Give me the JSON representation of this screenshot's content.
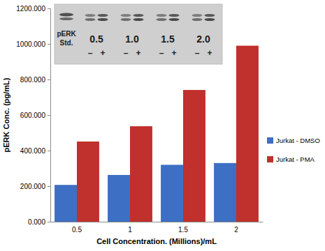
{
  "chart_data": {
    "type": "bar",
    "y_label": "pERK Conc. (pg/mL)",
    "x_label": "Cell Concentration. (Millions)/mL",
    "categories": [
      "0.5",
      "1",
      "1.5",
      "2"
    ],
    "series": [
      {
        "name": "Jurkat - DMSO",
        "color": "#3d6fc4",
        "values": [
          207,
          263,
          320,
          330
        ]
      },
      {
        "name": "Jurkat - PMA",
        "color": "#c0302c",
        "values": [
          451,
          537,
          741,
          990
        ]
      }
    ],
    "ylim": [
      0,
      1200
    ],
    "yticks": [
      {
        "value": 0,
        "label": "0.000"
      },
      {
        "value": 200,
        "label": "200.000"
      },
      {
        "value": 400,
        "label": "400.000"
      },
      {
        "value": 600,
        "label": "600.000"
      },
      {
        "value": 800,
        "label": "800.000"
      },
      {
        "value": 1000,
        "label": "1000.000"
      },
      {
        "value": 1200,
        "label": "1200.000"
      }
    ],
    "grid": false,
    "legend": "right",
    "annotations": {
      "standard": [
        "pERK",
        "Std."
      ],
      "lanes": [
        "0.5",
        "1.0",
        "1.5",
        "2.0"
      ],
      "signs": [
        "–",
        "+"
      ]
    }
  }
}
